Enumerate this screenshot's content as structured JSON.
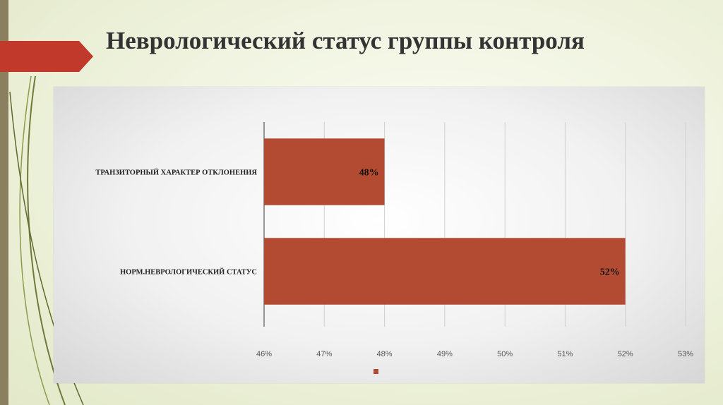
{
  "slide": {
    "title": "Неврологический статус группы контроля",
    "accent_color": "#c0392b",
    "stripe_color": "#8a8060"
  },
  "chart_data": {
    "type": "bar",
    "orientation": "horizontal",
    "categories": [
      "ТРАНЗИТОРНЫЙ ХАРАКТЕР ОТКЛОНЕНИЯ",
      "НОРМ.НЕВРОЛОГИЧЕСКИЙ СТАТУС"
    ],
    "values": [
      48,
      52
    ],
    "data_labels": [
      "48%",
      "52%"
    ],
    "xlim": [
      46,
      53
    ],
    "x_ticks": [
      "46%",
      "47%",
      "48%",
      "49%",
      "50%",
      "51%",
      "52%",
      "53%"
    ],
    "grid": true,
    "bar_color": "#b34a32",
    "legend_position": "bottom",
    "legend_entries": [
      ""
    ]
  }
}
